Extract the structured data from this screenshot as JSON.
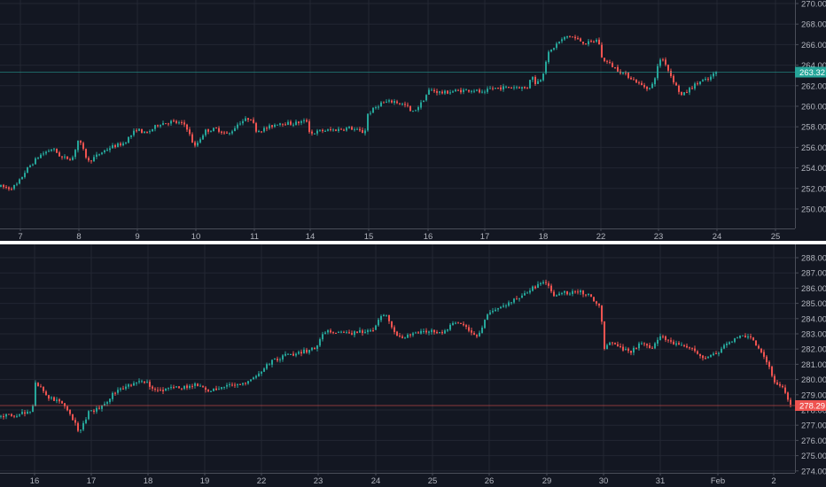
{
  "theme": {
    "background": "#131722",
    "grid": "#232733",
    "axis_line": "#4a4e59",
    "axis_text": "#b2b5be",
    "up_color": "#26a69a",
    "down_color": "#ef5350",
    "separator": "#ffffff"
  },
  "chart_data": [
    {
      "type": "candlestick",
      "pane": "top",
      "title": "",
      "xlabel": "",
      "ylabel": "",
      "ylim": [
        248.5,
        270.5
      ],
      "y_ticks": [
        "270.00",
        "268.00",
        "266.00",
        "264.00",
        "262.00",
        "260.00",
        "258.00",
        "256.00",
        "254.00",
        "252.00",
        "250.00"
      ],
      "x_ticks": [
        "7",
        "8",
        "9",
        "10",
        "11",
        "14",
        "15",
        "16",
        "17",
        "18",
        "22",
        "23",
        "24",
        "25"
      ],
      "last_price": {
        "label": "263.32",
        "value": 263.32,
        "color": "#26a69a"
      },
      "waypoints": [
        [
          0,
          252.2
        ],
        [
          12,
          252.0
        ],
        [
          20,
          252.4
        ],
        [
          30,
          253.8
        ],
        [
          45,
          255.2
        ],
        [
          60,
          255.9
        ],
        [
          70,
          255.0
        ],
        [
          82,
          254.9
        ],
        [
          89,
          256.8
        ],
        [
          100,
          254.6
        ],
        [
          115,
          255.5
        ],
        [
          125,
          256.0
        ],
        [
          140,
          256.4
        ],
        [
          155,
          257.8
        ],
        [
          165,
          257.3
        ],
        [
          180,
          258.3
        ],
        [
          195,
          258.5
        ],
        [
          210,
          258.2
        ],
        [
          220,
          256.0
        ],
        [
          232,
          257.6
        ],
        [
          245,
          257.8
        ],
        [
          258,
          257.2
        ],
        [
          270,
          258.4
        ],
        [
          283,
          258.9
        ],
        [
          290,
          257.6
        ],
        [
          300,
          257.8
        ],
        [
          315,
          258.4
        ],
        [
          330,
          258.3
        ],
        [
          348,
          258.6
        ],
        [
          350,
          257.3
        ],
        [
          362,
          257.6
        ],
        [
          378,
          257.7
        ],
        [
          395,
          257.9
        ],
        [
          412,
          257.4
        ],
        [
          415,
          259.2
        ],
        [
          430,
          260.3
        ],
        [
          445,
          260.5
        ],
        [
          460,
          260.0
        ],
        [
          465,
          259.3
        ],
        [
          475,
          260.2
        ],
        [
          485,
          261.6
        ],
        [
          500,
          261.3
        ],
        [
          515,
          261.5
        ],
        [
          535,
          261.6
        ],
        [
          547,
          261.2
        ],
        [
          552,
          261.7
        ],
        [
          565,
          261.8
        ],
        [
          585,
          261.9
        ],
        [
          595,
          261.7
        ],
        [
          600,
          263.1
        ],
        [
          605,
          262.2
        ],
        [
          612,
          262.8
        ],
        [
          618,
          265.0
        ],
        [
          630,
          266.2
        ],
        [
          642,
          266.9
        ],
        [
          652,
          266.5
        ],
        [
          662,
          266.1
        ],
        [
          676,
          266.5
        ],
        [
          678,
          264.8
        ],
        [
          690,
          264.0
        ],
        [
          700,
          263.4
        ],
        [
          712,
          262.8
        ],
        [
          725,
          262.0
        ],
        [
          735,
          261.7
        ],
        [
          740,
          263.0
        ],
        [
          745,
          264.6
        ],
        [
          750,
          264.5
        ],
        [
          755,
          263.4
        ],
        [
          765,
          261.7
        ],
        [
          770,
          261.0
        ],
        [
          780,
          261.8
        ],
        [
          790,
          262.4
        ],
        [
          800,
          262.6
        ],
        [
          808,
          263.3
        ]
      ]
    },
    {
      "type": "candlestick",
      "pane": "bottom",
      "title": "",
      "xlabel": "",
      "ylabel": "",
      "ylim": [
        273.8,
        288.5
      ],
      "y_ticks": [
        "288.00",
        "287.00",
        "286.00",
        "285.00",
        "284.00",
        "283.00",
        "282.00",
        "281.00",
        "280.00",
        "279.00",
        "278.00",
        "277.00",
        "276.00",
        "275.00",
        "274.00"
      ],
      "x_ticks": [
        "16",
        "17",
        "18",
        "19",
        "22",
        "23",
        "24",
        "25",
        "26",
        "29",
        "30",
        "31",
        "Feb",
        "2"
      ],
      "last_price": {
        "label": "278.29",
        "value": 278.29,
        "color": "#ef5350"
      },
      "waypoints": [
        [
          0,
          277.6
        ],
        [
          15,
          277.7
        ],
        [
          30,
          277.8
        ],
        [
          37,
          278.0
        ],
        [
          40,
          279.9
        ],
        [
          48,
          279.4
        ],
        [
          55,
          278.8
        ],
        [
          70,
          278.4
        ],
        [
          80,
          277.6
        ],
        [
          90,
          276.6
        ],
        [
          100,
          277.8
        ],
        [
          115,
          278.2
        ],
        [
          130,
          279.2
        ],
        [
          150,
          279.8
        ],
        [
          165,
          279.8
        ],
        [
          175,
          279.3
        ],
        [
          195,
          279.4
        ],
        [
          210,
          279.5
        ],
        [
          225,
          279.7
        ],
        [
          235,
          279.3
        ],
        [
          250,
          279.5
        ],
        [
          265,
          279.6
        ],
        [
          280,
          279.9
        ],
        [
          295,
          280.6
        ],
        [
          310,
          281.3
        ],
        [
          325,
          281.6
        ],
        [
          340,
          281.8
        ],
        [
          355,
          282.0
        ],
        [
          365,
          283.0
        ],
        [
          375,
          283.2
        ],
        [
          390,
          283.0
        ],
        [
          405,
          283.1
        ],
        [
          420,
          283.2
        ],
        [
          430,
          284.2
        ],
        [
          435,
          284.4
        ],
        [
          445,
          283.1
        ],
        [
          455,
          282.6
        ],
        [
          465,
          283.0
        ],
        [
          480,
          283.2
        ],
        [
          490,
          283.1
        ],
        [
          500,
          283.0
        ],
        [
          510,
          283.7
        ],
        [
          525,
          283.5
        ],
        [
          535,
          282.9
        ],
        [
          540,
          282.8
        ],
        [
          550,
          284.3
        ],
        [
          565,
          284.8
        ],
        [
          580,
          285.2
        ],
        [
          595,
          285.8
        ],
        [
          615,
          286.4
        ],
        [
          625,
          285.6
        ],
        [
          640,
          285.7
        ],
        [
          655,
          285.8
        ],
        [
          668,
          285.4
        ],
        [
          678,
          284.8
        ],
        [
          682,
          282.0
        ],
        [
          690,
          282.4
        ],
        [
          700,
          282.1
        ],
        [
          712,
          281.8
        ],
        [
          725,
          282.4
        ],
        [
          735,
          282.0
        ],
        [
          745,
          282.9
        ],
        [
          760,
          282.3
        ],
        [
          780,
          282.2
        ],
        [
          795,
          281.4
        ],
        [
          805,
          281.6
        ],
        [
          815,
          282.0
        ],
        [
          830,
          282.8
        ],
        [
          845,
          282.9
        ],
        [
          860,
          281.8
        ],
        [
          870,
          280.6
        ],
        [
          875,
          279.8
        ],
        [
          885,
          279.3
        ],
        [
          893,
          278.3
        ]
      ]
    }
  ],
  "top_pane": {
    "x_tick_positions": [
      23,
      89,
      155,
      221,
      287,
      350,
      416,
      483,
      547,
      613,
      678,
      743,
      809,
      875
    ],
    "separator_label": ""
  },
  "bottom_pane": {
    "x_tick_positions": [
      39,
      103,
      167,
      231,
      295,
      359,
      424,
      488,
      552,
      617,
      681,
      745,
      810,
      873
    ]
  }
}
